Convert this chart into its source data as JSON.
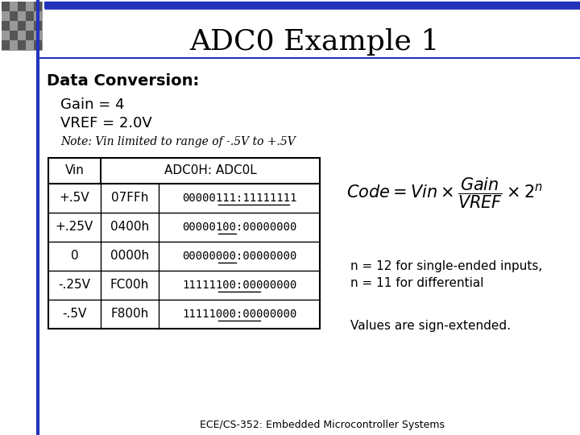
{
  "title": "ADC0 Example 1",
  "section_header": "Data Conversion:",
  "gain_text": "Gain = 4",
  "vref_text": "VREF = 2.0V",
  "note_text": "Note: Vin limited to range of -.5V to +.5V",
  "table_rows": [
    [
      "+.5V",
      "07FFh",
      "00000111:11111111"
    ],
    [
      "+.25V",
      "0400h",
      "00000100:00000000"
    ],
    [
      "0",
      "0000h",
      "00000000:00000000"
    ],
    [
      "-.25V",
      "FC00h",
      "11111100:00000000"
    ],
    [
      "-.5V",
      "F800h",
      "11111000:00000000"
    ]
  ],
  "ul_starts": [
    5,
    5,
    5,
    5,
    5
  ],
  "ul_ends": [
    17,
    8,
    8,
    12,
    12
  ],
  "n_note1": "n = 12 for single-ended inputs,",
  "n_note2": "n = 11 for differential",
  "values_note": "Values are sign-extended.",
  "footer": "ECE/CS-352: Embedded Microcontroller Systems",
  "slide_bg": "#ffffff",
  "border_color": "#2233bb",
  "title_color": "#000000"
}
